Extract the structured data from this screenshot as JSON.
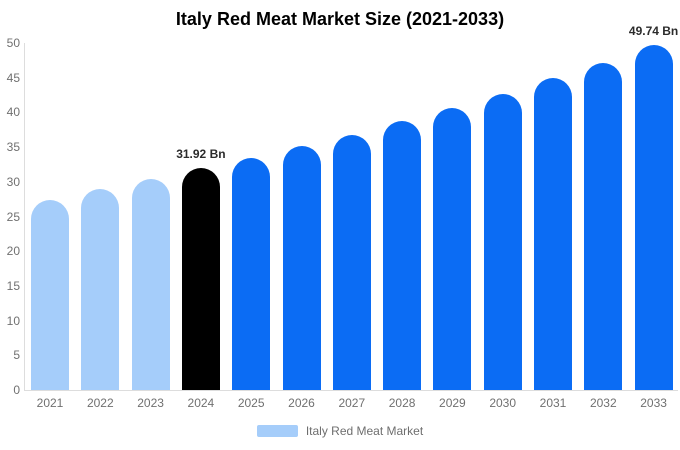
{
  "chart_data": {
    "type": "bar",
    "title": "Italy Red Meat Market Size (2021-2033)",
    "categories": [
      "2021",
      "2022",
      "2023",
      "2024",
      "2025",
      "2026",
      "2027",
      "2028",
      "2029",
      "2030",
      "2031",
      "2032",
      "2033"
    ],
    "values": [
      27.4,
      28.9,
      30.4,
      31.92,
      33.5,
      35.1,
      36.8,
      38.8,
      40.6,
      42.6,
      44.9,
      47.1,
      49.74
    ],
    "point_colors": [
      "#A5CDFA",
      "#A5CDFA",
      "#A5CDFA",
      "#000000",
      "#0B6CF4",
      "#0B6CF4",
      "#0B6CF4",
      "#0B6CF4",
      "#0B6CF4",
      "#0B6CF4",
      "#0B6CF4",
      "#0B6CF4",
      "#0B6CF4"
    ],
    "ylim": [
      0,
      50
    ],
    "y_ticks": [
      0,
      5,
      10,
      15,
      20,
      25,
      30,
      35,
      40,
      45,
      50
    ],
    "grid": false,
    "annotations": [
      {
        "index": 3,
        "text": "31.92 Bn"
      },
      {
        "index": 12,
        "text": "49.74 Bn"
      }
    ],
    "legend": {
      "position": "bottom",
      "label": "Italy Red Meat Market",
      "swatch_color": "#A5CDFA"
    }
  },
  "colors": {
    "historical_bar": "#A5CDFA",
    "highlight_bar": "#000000",
    "forecast_bar": "#0B6CF4",
    "axis_line": "#DDDDDD",
    "tick_text": "#707070",
    "annotation_text": "#2B2B2B",
    "title_text": "#000000"
  }
}
